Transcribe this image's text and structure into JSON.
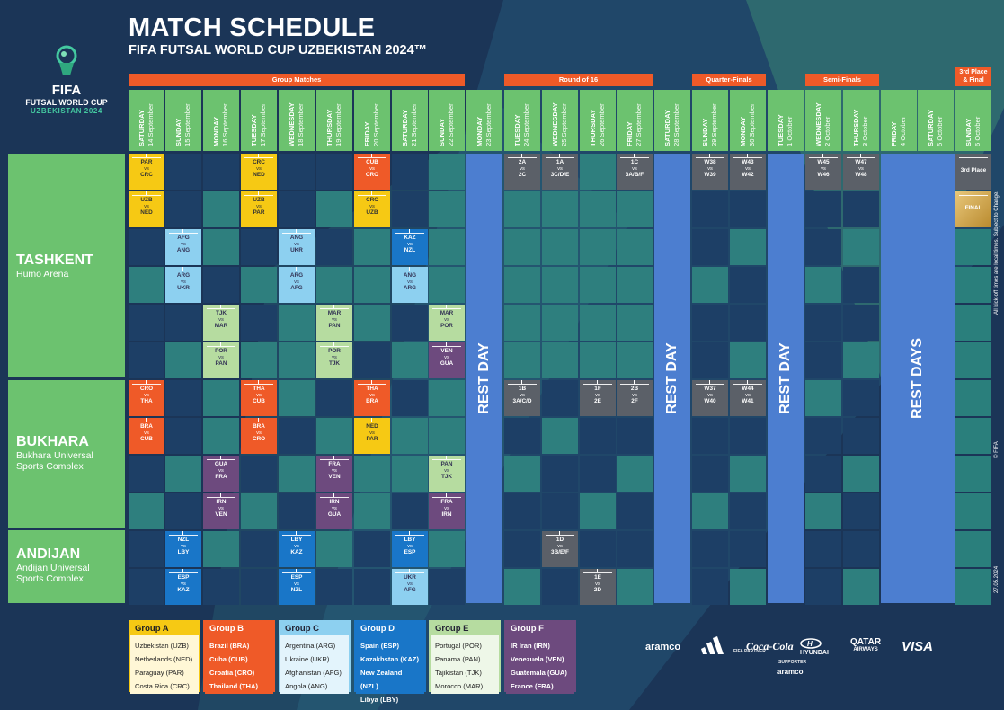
{
  "header": {
    "title": "MATCH SCHEDULE",
    "subtitle": "FIFA FUTSAL WORLD CUP UZBEKISTAN 2024™"
  },
  "logo": {
    "line1": "FIFA",
    "line2": "FUTSAL WORLD CUP",
    "line3": "UZBEKISTAN 2024",
    "icon": "trophy-emblem-icon"
  },
  "stages": {
    "group": "Group Matches",
    "r16": "Round of 16",
    "qf": "Quarter-Finals",
    "sf": "Semi-Finals",
    "final_l1": "3rd Place",
    "final_l2": "& Final"
  },
  "days": [
    {
      "wd": "SATURDAY",
      "dt": "14 September"
    },
    {
      "wd": "SUNDAY",
      "dt": "15 September"
    },
    {
      "wd": "MONDAY",
      "dt": "16 September"
    },
    {
      "wd": "TUESDAY",
      "dt": "17 September"
    },
    {
      "wd": "WEDNESDAY",
      "dt": "18 September"
    },
    {
      "wd": "THURSDAY",
      "dt": "19 September"
    },
    {
      "wd": "FRIDAY",
      "dt": "20 September"
    },
    {
      "wd": "SATURDAY",
      "dt": "21 September"
    },
    {
      "wd": "SUNDAY",
      "dt": "22 September"
    },
    {
      "wd": "MONDAY",
      "dt": "23 September"
    },
    {
      "wd": "TUESDAY",
      "dt": "24 September"
    },
    {
      "wd": "WEDNESDAY",
      "dt": "25 September"
    },
    {
      "wd": "THURSDAY",
      "dt": "26 September"
    },
    {
      "wd": "FRIDAY",
      "dt": "27 September"
    },
    {
      "wd": "SATURDAY",
      "dt": "28 September"
    },
    {
      "wd": "SUNDAY",
      "dt": "29 September"
    },
    {
      "wd": "MONDAY",
      "dt": "30 September"
    },
    {
      "wd": "TUESDAY",
      "dt": "1 October"
    },
    {
      "wd": "WEDNESDAY",
      "dt": "2 October"
    },
    {
      "wd": "THURSDAY",
      "dt": "3 October"
    },
    {
      "wd": "FRIDAY",
      "dt": "4 October"
    },
    {
      "wd": "SATURDAY",
      "dt": "5 October"
    },
    {
      "wd": "SUNDAY",
      "dt": "6 October"
    }
  ],
  "venues": [
    {
      "name": "TASHKENT",
      "stadium_l1": "Humo Arena",
      "stadium_l2": ""
    },
    {
      "name": "BUKHARA",
      "stadium_l1": "Bukhara Universal",
      "stadium_l2": "Sports Complex"
    },
    {
      "name": "ANDIJAN",
      "stadium_l1": "Andijan Universal",
      "stadium_l2": "Sports Complex"
    }
  ],
  "rest": {
    "day": "REST DAY",
    "days": "REST DAYS"
  },
  "colors": {
    "A": "#f6c914",
    "B": "#ef5a28",
    "C": "#8dd0f0",
    "D": "#1976c8",
    "E": "#b6dca0",
    "F": "#6d4a7e",
    "KO": "#5b6068",
    "FINAL": "#d4a84a",
    "cell_dark": "#1d3f66",
    "cell_teal": "#2e7f7e",
    "green": "#6cc26f",
    "rest": "#4c7ed0"
  },
  "matches": [
    {
      "c": 0,
      "r": 0,
      "g": "A",
      "t1": "PAR",
      "t2": "CRC"
    },
    {
      "c": 0,
      "r": 1,
      "g": "A",
      "t1": "UZB",
      "t2": "NED"
    },
    {
      "c": 3,
      "r": 0,
      "g": "A",
      "t1": "CRC",
      "t2": "NED"
    },
    {
      "c": 3,
      "r": 1,
      "g": "A",
      "t1": "UZB",
      "t2": "PAR"
    },
    {
      "c": 6,
      "r": 0,
      "g": "B",
      "t1": "CUB",
      "t2": "CRO"
    },
    {
      "c": 6,
      "r": 1,
      "g": "A",
      "t1": "CRC",
      "t2": "UZB"
    },
    {
      "c": 1,
      "r": 2,
      "g": "C",
      "t1": "AFG",
      "t2": "ANG"
    },
    {
      "c": 1,
      "r": 3,
      "g": "C",
      "t1": "ARG",
      "t2": "UKR"
    },
    {
      "c": 4,
      "r": 2,
      "g": "C",
      "t1": "ANG",
      "t2": "UKR"
    },
    {
      "c": 4,
      "r": 3,
      "g": "C",
      "t1": "ARG",
      "t2": "AFG"
    },
    {
      "c": 7,
      "r": 2,
      "g": "D",
      "t1": "KAZ",
      "t2": "NZL"
    },
    {
      "c": 7,
      "r": 3,
      "g": "C",
      "t1": "ANG",
      "t2": "ARG"
    },
    {
      "c": 2,
      "r": 4,
      "g": "E",
      "t1": "TJK",
      "t2": "MAR"
    },
    {
      "c": 2,
      "r": 5,
      "g": "E",
      "t1": "POR",
      "t2": "PAN"
    },
    {
      "c": 5,
      "r": 4,
      "g": "E",
      "t1": "MAR",
      "t2": "PAN"
    },
    {
      "c": 5,
      "r": 5,
      "g": "E",
      "t1": "POR",
      "t2": "TJK"
    },
    {
      "c": 8,
      "r": 4,
      "g": "E",
      "t1": "MAR",
      "t2": "POR"
    },
    {
      "c": 8,
      "r": 5,
      "g": "F",
      "t1": "VEN",
      "t2": "GUA"
    },
    {
      "c": 0,
      "r": 6,
      "g": "B",
      "t1": "CRO",
      "t2": "THA"
    },
    {
      "c": 0,
      "r": 7,
      "g": "B",
      "t1": "BRA",
      "t2": "CUB"
    },
    {
      "c": 3,
      "r": 6,
      "g": "B",
      "t1": "THA",
      "t2": "CUB"
    },
    {
      "c": 3,
      "r": 7,
      "g": "B",
      "t1": "BRA",
      "t2": "CRO"
    },
    {
      "c": 6,
      "r": 6,
      "g": "B",
      "t1": "THA",
      "t2": "BRA"
    },
    {
      "c": 6,
      "r": 7,
      "g": "A",
      "t1": "NED",
      "t2": "PAR"
    },
    {
      "c": 2,
      "r": 8,
      "g": "F",
      "t1": "GUA",
      "t2": "FRA"
    },
    {
      "c": 2,
      "r": 9,
      "g": "F",
      "t1": "IRN",
      "t2": "VEN"
    },
    {
      "c": 5,
      "r": 8,
      "g": "F",
      "t1": "FRA",
      "t2": "VEN"
    },
    {
      "c": 5,
      "r": 9,
      "g": "F",
      "t1": "IRN",
      "t2": "GUA"
    },
    {
      "c": 8,
      "r": 8,
      "g": "E",
      "t1": "PAN",
      "t2": "TJK"
    },
    {
      "c": 8,
      "r": 9,
      "g": "F",
      "t1": "FRA",
      "t2": "IRN"
    },
    {
      "c": 1,
      "r": 10,
      "g": "D",
      "t1": "NZL",
      "t2": "LBY"
    },
    {
      "c": 1,
      "r": 11,
      "g": "D",
      "t1": "ESP",
      "t2": "KAZ"
    },
    {
      "c": 4,
      "r": 10,
      "g": "D",
      "t1": "LBY",
      "t2": "KAZ"
    },
    {
      "c": 4,
      "r": 11,
      "g": "D",
      "t1": "ESP",
      "t2": "NZL"
    },
    {
      "c": 7,
      "r": 10,
      "g": "D",
      "t1": "LBY",
      "t2": "ESP"
    },
    {
      "c": 7,
      "r": 11,
      "g": "C",
      "t1": "UKR",
      "t2": "AFG"
    },
    {
      "c": 10,
      "r": 0,
      "g": "KO",
      "t1": "2A",
      "t2": "2C"
    },
    {
      "c": 11,
      "r": 0,
      "g": "KO",
      "t1": "1A",
      "t2": "3C/D/E"
    },
    {
      "c": 13,
      "r": 0,
      "g": "KO",
      "t1": "1C",
      "t2": "3A/B/F"
    },
    {
      "c": 10,
      "r": 6,
      "g": "KO",
      "t1": "1B",
      "t2": "3A/C/D"
    },
    {
      "c": 12,
      "r": 6,
      "g": "KO",
      "t1": "1F",
      "t2": "2E"
    },
    {
      "c": 13,
      "r": 6,
      "g": "KO",
      "t1": "2B",
      "t2": "2F"
    },
    {
      "c": 11,
      "r": 10,
      "g": "KO",
      "t1": "1D",
      "t2": "3B/E/F"
    },
    {
      "c": 12,
      "r": 11,
      "g": "KO",
      "t1": "1E",
      "t2": "2D"
    },
    {
      "c": 15,
      "r": 0,
      "g": "KO",
      "t1": "W38",
      "t2": "W39"
    },
    {
      "c": 16,
      "r": 0,
      "g": "KO",
      "t1": "W43",
      "t2": "W42"
    },
    {
      "c": 15,
      "r": 6,
      "g": "KO",
      "t1": "W37",
      "t2": "W40"
    },
    {
      "c": 16,
      "r": 6,
      "g": "KO",
      "t1": "W44",
      "t2": "W41"
    },
    {
      "c": 18,
      "r": 0,
      "g": "KO",
      "t1": "W45",
      "t2": "W46"
    },
    {
      "c": 19,
      "r": 0,
      "g": "KO",
      "t1": "W47",
      "t2": "W48"
    }
  ],
  "third_place_label": "3rd Place",
  "final_label": "FINAL",
  "vs": "vs",
  "legend": [
    {
      "key": "A",
      "title": "Group A",
      "teams": [
        "Uzbekistan (UZB)",
        "Netherlands (NED)",
        "Paraguay (PAR)",
        "Costa Rica (CRC)"
      ]
    },
    {
      "key": "B",
      "title": "Group B",
      "teams": [
        "Brazil (BRA)",
        "Cuba (CUB)",
        "Croatia (CRO)",
        "Thailand (THA)"
      ]
    },
    {
      "key": "C",
      "title": "Group C",
      "teams": [
        "Argentina (ARG)",
        "Ukraine (UKR)",
        "Afghanistan (AFG)",
        "Angola (ANG)"
      ]
    },
    {
      "key": "D",
      "title": "Group D",
      "teams": [
        "Spain (ESP)",
        "Kazakhstan (KAZ)",
        "New Zealand (NZL)",
        "Libya (LBY)"
      ]
    },
    {
      "key": "E",
      "title": "Group E",
      "teams": [
        "Portugal (POR)",
        "Panama (PAN)",
        "Tajikistan (TJK)",
        "Morocco (MAR)"
      ]
    },
    {
      "key": "F",
      "title": "Group F",
      "teams": [
        "IR Iran (IRN)",
        "Venezuela (VEN)",
        "Guatemala (GUA)",
        "France (FRA)"
      ]
    }
  ],
  "side_note": "All kick-off times are local times. Subject to Change.",
  "copyright": "© FIFA",
  "date_stamp": "27.05.2024",
  "sponsors": {
    "aramco": "aramco",
    "adidas": "adidas",
    "cocacola": "Coca-Cola",
    "hyundai": "HYUNDAI",
    "qatar1": "QATAR",
    "qatar2": "AIRWAYS",
    "visa": "VISA",
    "fifa_partner": "FIFA PARTNER",
    "supporter": "SUPPORTER",
    "aramco2": "aramco"
  }
}
